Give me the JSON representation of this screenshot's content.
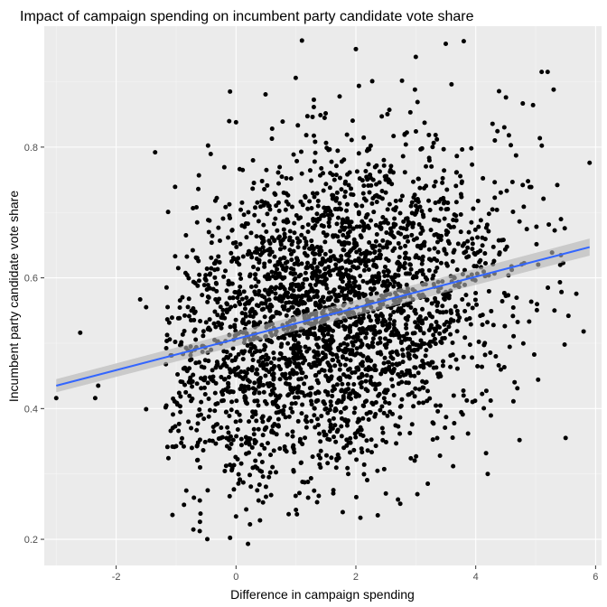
{
  "chart_data": {
    "type": "scatter",
    "title": "Impact of campaign spending on incumbent party candidate vote share",
    "xlabel": "Difference in campaign spending",
    "ylabel": "Incumbent party candidate vote share",
    "xlim": [
      -3.2,
      6.1
    ],
    "ylim": [
      0.16,
      0.985
    ],
    "x_ticks": [
      -2,
      0,
      2,
      4,
      6
    ],
    "y_ticks": [
      0.2,
      0.4,
      0.6,
      0.8
    ],
    "x_tick_labels": [
      "-2",
      "0",
      "2",
      "4",
      "6"
    ],
    "y_tick_labels": [
      "0.2",
      "0.4",
      "0.6",
      "0.8"
    ],
    "grid": true,
    "legend": "none",
    "point_count": 3000,
    "point_distribution": {
      "x_mean": 1.5,
      "x_sd": 1.5,
      "y_mean": 0.548,
      "y_sd": 0.12,
      "y_intercept": 0.506,
      "y_slope": 0.024
    },
    "outlier_points": [
      {
        "x": -3.0,
        "y": 0.416
      },
      {
        "x": -2.6,
        "y": 0.516
      },
      {
        "x": -2.3,
        "y": 0.435
      },
      {
        "x": -2.35,
        "y": 0.416
      },
      {
        "x": -1.6,
        "y": 0.567
      },
      {
        "x": -1.5,
        "y": 0.555
      },
      {
        "x": -1.5,
        "y": 0.399
      },
      {
        "x": -1.35,
        "y": 0.792
      },
      {
        "x": -0.1,
        "y": 0.885
      },
      {
        "x": 0.0,
        "y": 0.838
      },
      {
        "x": 0.0,
        "y": 0.235
      },
      {
        "x": 0.2,
        "y": 0.193
      },
      {
        "x": 0.4,
        "y": 0.229
      },
      {
        "x": 1.1,
        "y": 0.963
      },
      {
        "x": 2.0,
        "y": 0.95
      },
      {
        "x": 3.0,
        "y": 0.938
      },
      {
        "x": 3.5,
        "y": 0.958
      },
      {
        "x": 3.8,
        "y": 0.962
      },
      {
        "x": 5.1,
        "y": 0.915
      },
      {
        "x": 5.2,
        "y": 0.915
      },
      {
        "x": 5.3,
        "y": 0.888
      },
      {
        "x": 5.9,
        "y": 0.776
      },
      {
        "x": 5.5,
        "y": 0.355
      },
      {
        "x": 5.8,
        "y": 0.518
      },
      {
        "x": -0.6,
        "y": 0.31
      },
      {
        "x": 0.5,
        "y": 0.265
      },
      {
        "x": 1.0,
        "y": 0.245
      },
      {
        "x": 2.5,
        "y": 0.27
      },
      {
        "x": 3.2,
        "y": 0.285
      },
      {
        "x": 4.2,
        "y": 0.3
      }
    ],
    "series": [
      {
        "type": "linear-fit",
        "x": [
          -3.0,
          5.9
        ],
        "y": [
          0.435,
          0.647
        ],
        "ci_upper": [
          0.445,
          0.66
        ],
        "ci_lower": [
          0.425,
          0.634
        ],
        "color": "#3366ff"
      }
    ],
    "colors": {
      "panel_background": "#ebebeb",
      "grid_major": "#ffffff",
      "point": "#000000",
      "fit_line": "#3366ff",
      "ci_band": "#c8c8c8"
    }
  }
}
